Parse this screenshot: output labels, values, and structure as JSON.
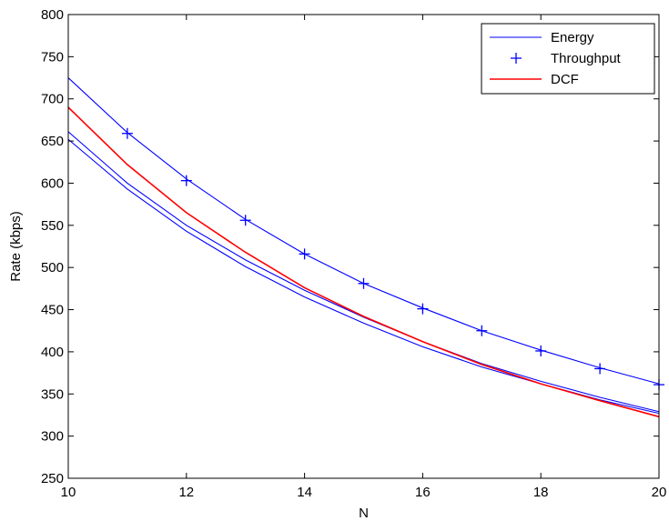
{
  "chart_data": {
    "type": "line",
    "title": "",
    "xlabel": "N",
    "ylabel": "Rate (kbps)",
    "xlim": [
      10,
      20
    ],
    "ylim": [
      250,
      800
    ],
    "x_ticks": [
      10,
      12,
      14,
      16,
      18,
      20
    ],
    "y_ticks": [
      250,
      300,
      350,
      400,
      450,
      500,
      550,
      600,
      650,
      700,
      750,
      800
    ],
    "grid": false,
    "legend_position": "top-right",
    "legend": [
      {
        "label": "Energy",
        "style": "line",
        "color": "#0000ff"
      },
      {
        "label": "Throughput",
        "style": "plus",
        "color": "#0000ff"
      },
      {
        "label": "DCF",
        "style": "line",
        "color": "#ff0000"
      }
    ],
    "series": [
      {
        "kind": "energy",
        "style": "line",
        "color": "#0000ff",
        "x": [
          10,
          11,
          12,
          13,
          14,
          15,
          16,
          17,
          18,
          19,
          20
        ],
        "y": [
          725,
          660,
          605,
          557,
          516,
          481,
          452,
          425,
          402,
          381,
          362
        ]
      },
      {
        "kind": "energy",
        "style": "line",
        "color": "#0000ff",
        "x": [
          10,
          11,
          12,
          13,
          14,
          15,
          16,
          17,
          18,
          19,
          20
        ],
        "y": [
          661,
          600,
          550,
          509,
          473,
          441,
          412,
          386,
          365,
          346,
          329
        ]
      },
      {
        "kind": "energy",
        "style": "line",
        "color": "#0000ff",
        "x": [
          10,
          11,
          12,
          13,
          14,
          15,
          16,
          17,
          18,
          19,
          20
        ],
        "y": [
          652,
          593,
          543,
          501,
          465,
          434,
          406,
          382,
          362,
          343,
          327
        ]
      },
      {
        "name": "Throughput",
        "style": "plus",
        "color": "#0000ff",
        "x": [
          11,
          12,
          13,
          14,
          15,
          16,
          17,
          18,
          19,
          20
        ],
        "y": [
          659,
          603,
          556,
          516,
          481,
          451,
          425,
          401,
          380,
          361
        ]
      },
      {
        "name": "DCF",
        "style": "line",
        "color": "#ff0000",
        "x": [
          10,
          11,
          12,
          13,
          14,
          15,
          16,
          17,
          18,
          19,
          20
        ],
        "y": [
          690,
          622,
          565,
          518,
          476,
          442,
          412,
          385,
          362,
          342,
          323
        ]
      }
    ]
  }
}
